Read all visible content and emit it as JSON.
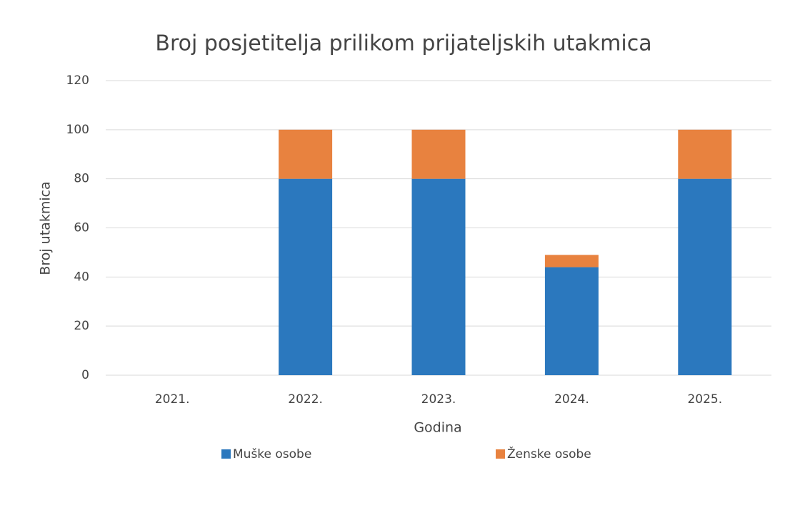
{
  "chart_data": {
    "type": "stacked_bar",
    "title": "Broj posjetitelja prilikom prijateljskih utakmica",
    "x_label": "Godina",
    "y_label": "Broj utakmica",
    "categories": [
      "2021.",
      "2022.",
      "2023.",
      "2024.",
      "2025."
    ],
    "series": [
      {
        "name": "Muške osobe",
        "color": "#2b78be",
        "values": [
          0,
          80,
          80,
          44,
          80
        ]
      },
      {
        "name": "Ženske osobe",
        "color": "#e8823f",
        "values": [
          0,
          20,
          20,
          5,
          20
        ]
      }
    ],
    "ylim": [
      0,
      120
    ],
    "yticks": [
      0,
      20,
      40,
      60,
      80,
      100,
      120
    ],
    "grid": true,
    "legend": "bottom"
  }
}
